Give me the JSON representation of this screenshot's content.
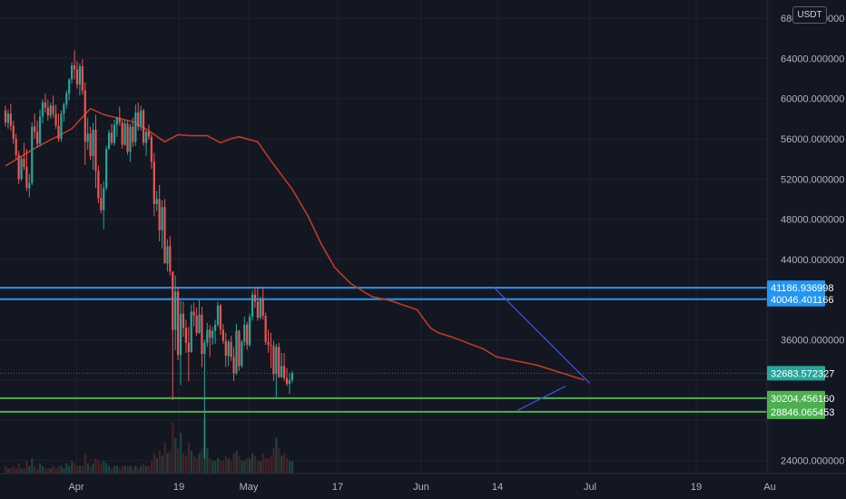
{
  "currency": "USDT",
  "colors": {
    "background": "#131722",
    "grid": "#1e222d",
    "up": "#26a69a",
    "down": "#ef5350",
    "ma": "#c0392b",
    "resistance": "#2196f3",
    "support": "#4caf50",
    "trendline": "#3f51d8",
    "current": "#26a69a"
  },
  "chart_data": {
    "type": "candlestick",
    "x_tick_labels": [
      "Apr",
      "19",
      "May",
      "17",
      "Jun",
      "14",
      "Jul",
      "19",
      "Au"
    ],
    "y_tick_labels": [
      "68000.000000",
      "64000.000000",
      "60000.000000",
      "56000.000000",
      "52000.000000",
      "48000.000000",
      "44000.000000",
      "36000.000000",
      "24000.000000"
    ],
    "y_ticks": [
      68000,
      64000,
      60000,
      56000,
      52000,
      48000,
      44000,
      36000,
      24000
    ],
    "ylim": [
      22700,
      69800
    ],
    "candles": [
      [
        58800,
        59300,
        57200,
        57600
      ],
      [
        57600,
        58900,
        57000,
        58500
      ],
      [
        58500,
        59500,
        56800,
        57300
      ],
      [
        57300,
        57800,
        55500,
        56000
      ],
      [
        56000,
        56500,
        54000,
        54400
      ],
      [
        54400,
        54800,
        51500,
        52000
      ],
      [
        52000,
        54300,
        51800,
        54000
      ],
      [
        54000,
        55600,
        52900,
        53200
      ],
      [
        53200,
        55000,
        50800,
        51100
      ],
      [
        51100,
        52500,
        50200,
        51600
      ],
      [
        51600,
        57600,
        51400,
        57200
      ],
      [
        57200,
        58500,
        56000,
        56700
      ],
      [
        56700,
        57800,
        55100,
        55500
      ],
      [
        55500,
        58900,
        55200,
        58200
      ],
      [
        58200,
        59900,
        57500,
        59600
      ],
      [
        59600,
        60500,
        58600,
        59100
      ],
      [
        59100,
        59900,
        57800,
        58300
      ],
      [
        58300,
        59600,
        58000,
        59300
      ],
      [
        59300,
        60300,
        58100,
        58500
      ],
      [
        58500,
        59400,
        57000,
        57300
      ],
      [
        57300,
        58500,
        55700,
        56000
      ],
      [
        56000,
        58800,
        55700,
        58500
      ],
      [
        58500,
        59600,
        57700,
        59400
      ],
      [
        59400,
        60800,
        59000,
        60500
      ],
      [
        60500,
        62000,
        59800,
        61900
      ],
      [
        61900,
        63600,
        61500,
        63300
      ],
      [
        63300,
        64800,
        61900,
        62900
      ],
      [
        62900,
        63700,
        61000,
        61400
      ],
      [
        61400,
        63500,
        60300,
        63200
      ],
      [
        63200,
        63900,
        60400,
        60800
      ],
      [
        60800,
        61600,
        53400,
        55700
      ],
      [
        55700,
        58100,
        54900,
        56500
      ],
      [
        56500,
        57200,
        53900,
        54300
      ],
      [
        54300,
        57600,
        52900,
        56900
      ],
      [
        56900,
        58400,
        51100,
        52800
      ],
      [
        52800,
        53300,
        49600,
        50100
      ],
      [
        50100,
        51500,
        48600,
        48900
      ],
      [
        48900,
        51800,
        47000,
        51100
      ],
      [
        51100,
        55300,
        50900,
        55000
      ],
      [
        55000,
        56900,
        54900,
        56600
      ],
      [
        56600,
        57500,
        55400,
        55600
      ],
      [
        55600,
        57900,
        55300,
        57400
      ],
      [
        57400,
        58200,
        56200,
        58100
      ],
      [
        58100,
        59200,
        57300,
        57600
      ],
      [
        57600,
        57900,
        55000,
        55400
      ],
      [
        55400,
        57900,
        55300,
        57500
      ],
      [
        57500,
        57800,
        54400,
        54700
      ],
      [
        54700,
        57500,
        53700,
        57200
      ],
      [
        57200,
        58100,
        55200,
        55700
      ],
      [
        55700,
        59400,
        55300,
        58600
      ],
      [
        58600,
        59600,
        56800,
        57200
      ],
      [
        57200,
        59300,
        56800,
        58800
      ],
      [
        58800,
        59000,
        55300,
        55600
      ],
      [
        55600,
        56800,
        54300,
        56700
      ],
      [
        56700,
        57400,
        55900,
        56200
      ],
      [
        56200,
        56500,
        53000,
        53700
      ],
      [
        53700,
        54600,
        48300,
        49500
      ],
      [
        49500,
        50800,
        48800,
        50000
      ],
      [
        50000,
        51400,
        45800,
        46900
      ],
      [
        46900,
        49900,
        45100,
        49200
      ],
      [
        49200,
        50000,
        43900,
        43600
      ],
      [
        43600,
        46000,
        42800,
        45300
      ],
      [
        45300,
        46300,
        42400,
        42800
      ],
      [
        42800,
        42800,
        30000,
        37000
      ],
      [
        37000,
        42400,
        35000,
        40800
      ],
      [
        40800,
        41300,
        34000,
        34500
      ],
      [
        34500,
        39900,
        31500,
        38600
      ],
      [
        38600,
        39800,
        36300,
        37200
      ],
      [
        37200,
        38000,
        34700,
        35700
      ],
      [
        35700,
        37300,
        31900,
        34800
      ],
      [
        34800,
        39500,
        34700,
        38800
      ],
      [
        38800,
        39700,
        37300,
        38400
      ],
      [
        38400,
        39200,
        36400,
        36700
      ],
      [
        36700,
        40100,
        36600,
        38500
      ],
      [
        38500,
        39300,
        33300,
        34600
      ],
      [
        34600,
        36000,
        24200,
        35700
      ],
      [
        35700,
        37700,
        35300,
        37000
      ],
      [
        37000,
        37500,
        34300,
        36200
      ],
      [
        36200,
        37300,
        35500,
        36900
      ],
      [
        36900,
        38000,
        35600,
        37500
      ],
      [
        37500,
        39800,
        37300,
        39400
      ],
      [
        39400,
        39600,
        36500,
        37000
      ],
      [
        37000,
        37600,
        35600,
        35900
      ],
      [
        35900,
        36700,
        33300,
        34400
      ],
      [
        34400,
        36000,
        33400,
        35800
      ],
      [
        35800,
        36400,
        33900,
        34300
      ],
      [
        34300,
        35300,
        31900,
        32700
      ],
      [
        32700,
        37600,
        32500,
        36900
      ],
      [
        36900,
        37000,
        32900,
        33400
      ],
      [
        33400,
        36000,
        33200,
        35800
      ],
      [
        35800,
        38300,
        35400,
        37500
      ],
      [
        37500,
        37800,
        35000,
        35500
      ],
      [
        35500,
        38600,
        35300,
        38300
      ],
      [
        38300,
        40900,
        37900,
        40500
      ],
      [
        40500,
        41200,
        39200,
        39800
      ],
      [
        39800,
        41200,
        37900,
        38200
      ],
      [
        38200,
        40300,
        38000,
        40100
      ],
      [
        40100,
        41300,
        38000,
        38400
      ],
      [
        38400,
        38700,
        35500,
        35800
      ],
      [
        35800,
        37000,
        34700,
        35500
      ],
      [
        35500,
        36700,
        33200,
        35400
      ],
      [
        35400,
        35900,
        31900,
        32600
      ],
      [
        32600,
        35600,
        30300,
        35300
      ],
      [
        35300,
        35700,
        32200,
        32300
      ],
      [
        32300,
        34700,
        32200,
        33400
      ],
      [
        33400,
        34700,
        31900,
        32200
      ],
      [
        32200,
        33200,
        31400,
        31600
      ],
      [
        31600,
        32700,
        30600,
        32000
      ],
      [
        32000,
        32900,
        31700,
        32700
      ]
    ],
    "moving_average": [
      [
        0,
        53300
      ],
      [
        12,
        55200
      ],
      [
        25,
        57000
      ],
      [
        32,
        59000
      ],
      [
        37,
        58400
      ],
      [
        48,
        57700
      ],
      [
        54,
        56800
      ],
      [
        60,
        55700
      ],
      [
        65,
        56400
      ],
      [
        70,
        56300
      ],
      [
        76,
        56300
      ],
      [
        81,
        55600
      ],
      [
        85,
        56000
      ],
      [
        88,
        56200
      ],
      [
        95,
        55700
      ],
      [
        100,
        53800
      ],
      [
        108,
        51000
      ],
      [
        114,
        48300
      ],
      [
        119,
        45500
      ],
      [
        124,
        43200
      ],
      [
        130,
        41600
      ],
      [
        138,
        40300
      ],
      [
        145,
        39900
      ],
      [
        155,
        39000
      ],
      [
        160,
        37200
      ],
      [
        163,
        36700
      ],
      [
        168,
        36300
      ],
      [
        180,
        35100
      ],
      [
        185,
        34300
      ],
      [
        200,
        33500
      ],
      [
        218,
        32000
      ]
    ],
    "resistance_levels": [
      41186.936998,
      40046.401166
    ],
    "resistance_labels": [
      "41186.936998",
      "40046.401166"
    ],
    "support_levels": [
      30204.45616,
      28846.065453
    ],
    "support_labels": [
      "30204.456160",
      "28846.065453"
    ],
    "current_price": 32683.572327,
    "current_price_label": "32683.572327",
    "trendlines": [
      {
        "from": [
          184,
          41200
        ],
        "to": [
          220,
          31700
        ]
      },
      {
        "from": [
          193,
          29000
        ],
        "to": [
          211,
          31400
        ]
      }
    ],
    "volume": [
      3,
      2,
      2,
      3,
      2,
      4,
      2,
      2,
      5,
      3,
      6,
      3,
      2,
      4,
      3,
      2,
      2,
      2,
      3,
      2,
      3,
      3,
      2,
      4,
      3,
      5,
      4,
      3,
      3,
      3,
      8,
      4,
      3,
      4,
      6,
      5,
      4,
      5,
      4,
      3,
      2,
      3,
      3,
      2,
      3,
      3,
      3,
      3,
      2,
      3,
      2,
      3,
      4,
      3,
      3,
      5,
      8,
      6,
      9,
      7,
      12,
      8,
      9,
      20,
      14,
      10,
      16,
      8,
      7,
      12,
      9,
      7,
      6,
      8,
      10,
      22,
      10,
      6,
      5,
      5,
      6,
      5,
      5,
      7,
      6,
      5,
      8,
      9,
      7,
      5,
      5,
      6,
      6,
      8,
      7,
      5,
      5,
      8,
      6,
      6,
      7,
      10,
      14,
      10,
      7,
      8,
      6,
      5,
      5
    ],
    "volume_bull_mask": [
      0,
      1,
      0,
      0,
      0,
      0,
      1,
      0,
      0,
      1,
      1,
      0,
      0,
      1,
      1,
      0,
      0,
      1,
      0,
      0,
      0,
      1,
      1,
      1,
      1,
      1,
      0,
      0,
      1,
      0,
      0,
      1,
      0,
      1,
      0,
      0,
      0,
      1,
      1,
      1,
      0,
      1,
      1,
      0,
      0,
      1,
      0,
      1,
      0,
      1,
      0,
      1,
      0,
      1,
      0,
      0,
      0,
      1,
      0,
      1,
      0,
      1,
      0,
      0,
      1,
      0,
      1,
      0,
      0,
      0,
      1,
      0,
      0,
      1,
      0,
      1,
      1,
      0,
      1,
      1,
      1,
      0,
      0,
      0,
      1,
      0,
      0,
      1,
      0,
      1,
      1,
      0,
      1,
      1,
      0,
      0,
      1,
      0,
      0,
      0,
      0,
      0,
      1,
      0,
      1,
      0,
      0,
      1,
      1
    ]
  }
}
